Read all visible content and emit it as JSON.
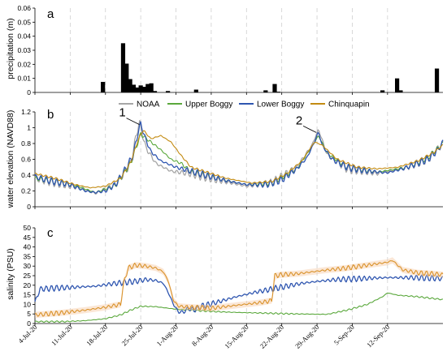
{
  "chart_data": [
    {
      "panel": "a",
      "type": "bar",
      "ylabel": "precipitation (m)",
      "ylim": [
        0,
        0.06
      ],
      "yticks": [
        "0",
        "0.01",
        "0.02",
        "0.03",
        "0.04",
        "0.05",
        "0.06"
      ],
      "grid": "vertical dashed",
      "x_unit": "day index from 4-Jul-20",
      "bars": [
        {
          "x": 13.5,
          "y": 0.0075
        },
        {
          "x": 17.5,
          "y": 0.035
        },
        {
          "x": 18.2,
          "y": 0.0205
        },
        {
          "x": 18.9,
          "y": 0.0095
        },
        {
          "x": 19.6,
          "y": 0.0055
        },
        {
          "x": 20.3,
          "y": 0.0035
        },
        {
          "x": 21.0,
          "y": 0.005
        },
        {
          "x": 21.7,
          "y": 0.004
        },
        {
          "x": 22.4,
          "y": 0.006
        },
        {
          "x": 23.1,
          "y": 0.0065
        },
        {
          "x": 23.8,
          "y": 0.001
        },
        {
          "x": 26.4,
          "y": 0.001
        },
        {
          "x": 32.0,
          "y": 0.002
        },
        {
          "x": 45.8,
          "y": 0.0015
        },
        {
          "x": 47.6,
          "y": 0.006
        },
        {
          "x": 48.3,
          "y": 0.0005
        },
        {
          "x": 69.0,
          "y": 0.0015
        },
        {
          "x": 71.9,
          "y": 0.01
        },
        {
          "x": 72.6,
          "y": 0.0015
        },
        {
          "x": 79.8,
          "y": 0.017
        }
      ]
    },
    {
      "panel": "b",
      "type": "line",
      "ylabel": "water elevation (NAVD88)",
      "ylim": [
        0,
        1.2
      ],
      "yticks": [
        "0",
        "0.2",
        "0.4",
        "0.6",
        "0.8",
        "1",
        "1.2"
      ],
      "legend": "top-center",
      "grid": "vertical dashed",
      "annotations": [
        {
          "text": "1",
          "x": 20.9,
          "y": 1.06
        },
        {
          "text": "2",
          "x": 56.0,
          "y": 0.96
        }
      ],
      "series": [
        {
          "name": "NOAA",
          "color": "#a6a6a6"
        },
        {
          "name": "Upper Boggy",
          "color": "#5aa83c"
        },
        {
          "name": "Lower Boggy",
          "color": "#2f56b0"
        },
        {
          "name": "Chinquapin",
          "color": "#c38b12"
        }
      ]
    },
    {
      "panel": "c",
      "type": "line",
      "ylabel": "salinity (PSU)",
      "ylim": [
        0,
        50
      ],
      "yticks": [
        "0",
        "5",
        "10",
        "15",
        "20",
        "25",
        "30",
        "35",
        "40",
        "45",
        "50"
      ],
      "grid": "vertical dashed",
      "series": [
        {
          "name": "Upper Boggy",
          "color": "#5aa83c"
        },
        {
          "name": "Lower Boggy",
          "color": "#2f56b0"
        },
        {
          "name": "Chinquapin",
          "color": "#d9922a"
        }
      ]
    }
  ],
  "xaxis": {
    "ticks": [
      "4-Jul-20",
      "11-Jul-20",
      "18-Jul-20",
      "25-Jul-20",
      "1-Aug-20",
      "8-Aug-20",
      "15-Aug-20",
      "22-Aug-20",
      "29-Aug-20",
      "5-Sep-20",
      "12-Sep-20"
    ],
    "range_days": [
      0,
      81
    ]
  }
}
